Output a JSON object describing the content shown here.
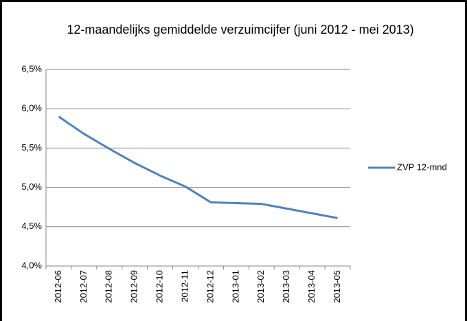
{
  "chart_data": {
    "type": "line",
    "title": "12-maandelijks gemiddelde verzuimcijfer (juni 2012 - mei 2013)",
    "categories": [
      "2012-06",
      "2012-07",
      "2012-08",
      "2012-09",
      "2012-10",
      "2012-11",
      "2012-12",
      "2013-01",
      "2013-02",
      "2013-03",
      "2013-04",
      "2013-05"
    ],
    "series": [
      {
        "name": "ZVP 12-mnd",
        "color": "#4f81bd",
        "values": [
          5.9,
          5.68,
          5.49,
          5.31,
          5.15,
          5.01,
          4.81,
          4.8,
          4.79,
          4.73,
          4.67,
          4.61
        ]
      }
    ],
    "ylim": [
      4.0,
      6.5
    ],
    "yticks": [
      {
        "value": 4.0,
        "label": "4,0%"
      },
      {
        "value": 4.5,
        "label": "4,5%"
      },
      {
        "value": 5.0,
        "label": "5,0%"
      },
      {
        "value": 5.5,
        "label": "5,5%"
      },
      {
        "value": 6.0,
        "label": "6,0%"
      },
      {
        "value": 6.5,
        "label": "6,5%"
      }
    ],
    "grid": true,
    "legend": "right"
  }
}
